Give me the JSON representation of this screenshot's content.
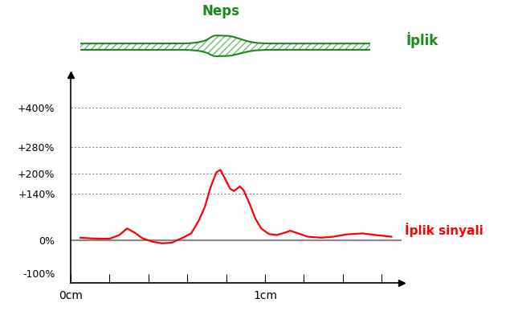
{
  "chart_data": {
    "type": "line",
    "annotations": [
      "Neps",
      "İplik"
    ],
    "x": [
      0.05,
      0.1,
      0.15,
      0.2,
      0.25,
      0.29,
      0.33,
      0.37,
      0.42,
      0.47,
      0.52,
      0.57,
      0.62,
      0.66,
      0.69,
      0.72,
      0.75,
      0.77,
      0.79,
      0.82,
      0.84,
      0.87,
      0.89,
      0.92,
      0.95,
      0.98,
      1.02,
      1.06,
      1.1,
      1.13,
      1.17,
      1.22,
      1.29,
      1.35,
      1.42,
      1.5,
      1.57,
      1.65
    ],
    "series": [
      {
        "name": "İplik sinyali",
        "color": "#ff0000",
        "values": [
          7,
          5,
          4,
          4,
          15,
          35,
          22,
          5,
          -5,
          -10,
          -8,
          5,
          20,
          60,
          100,
          160,
          205,
          212,
          190,
          155,
          148,
          162,
          150,
          110,
          65,
          35,
          18,
          15,
          22,
          28,
          20,
          10,
          7,
          10,
          17,
          20,
          15,
          10
        ]
      }
    ],
    "xlim": [
      0,
      1.7
    ],
    "xticks": [
      {
        "value": 0,
        "label": "0cm"
      },
      {
        "value": 0.2,
        "label": null
      },
      {
        "value": 0.4,
        "label": null
      },
      {
        "value": 0.6,
        "label": null
      },
      {
        "value": 0.8,
        "label": null
      },
      {
        "value": 1,
        "label": "1cm"
      },
      {
        "value": 1.2,
        "label": null
      },
      {
        "value": 1.4,
        "label": null
      },
      {
        "value": 1.6,
        "label": null
      }
    ],
    "ylim": [
      -130,
      500
    ],
    "yticks": [
      {
        "value": -100,
        "label": "-100%"
      },
      {
        "value": 0,
        "label": "0%"
      },
      {
        "value": 140,
        "label": "+140%"
      },
      {
        "value": 200,
        "label": "+200%"
      },
      {
        "value": 280,
        "label": "+280%"
      },
      {
        "value": 400,
        "label": "+400%"
      }
    ],
    "grid": true
  }
}
